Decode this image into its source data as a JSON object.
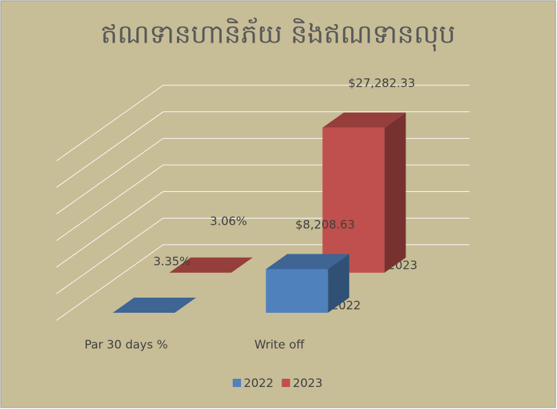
{
  "chart_data": {
    "type": "bar3d",
    "title": "ឥណទានហានិភ័យ និងឥណទានលុប",
    "categories": [
      "Par 30 days %",
      "Write off"
    ],
    "series": [
      {
        "name": "2022",
        "color": "#4f81bd",
        "values": [
          3.35,
          8208.63
        ],
        "value_labels": [
          "3.35%",
          "$8,208.63"
        ]
      },
      {
        "name": "2023",
        "color": "#c0504d",
        "values": [
          3.06,
          27282.33
        ],
        "value_labels": [
          "3.06%",
          "$27,282.33"
        ]
      }
    ],
    "ylim": [
      0,
      30000
    ],
    "yticks": [
      0,
      5000,
      10000,
      15000,
      20000,
      25000,
      30000
    ],
    "grid": true,
    "legend": "bottom"
  }
}
